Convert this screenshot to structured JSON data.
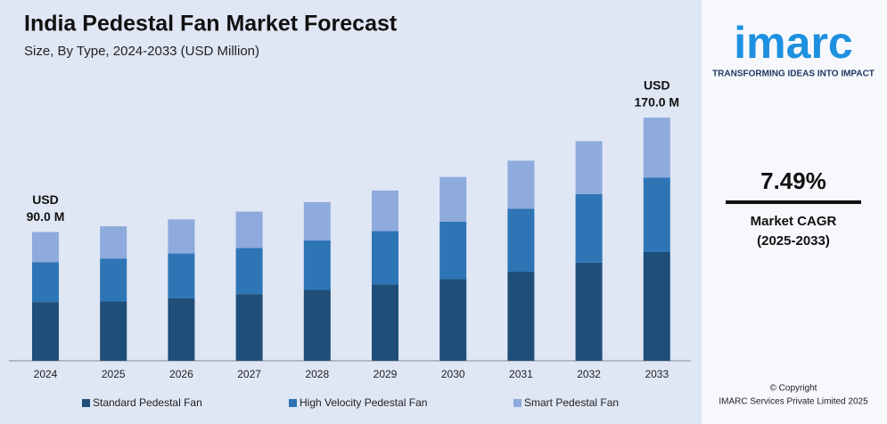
{
  "chart_data": {
    "type": "stacked-bar",
    "title": "India Pedestal Fan Market Forecast",
    "subtitle": "Size, By Type, 2024-2033 (USD Million)",
    "categories": [
      "2024",
      "2025",
      "2026",
      "2027",
      "2028",
      "2029",
      "2030",
      "2031",
      "2032",
      "2033"
    ],
    "series": [
      {
        "name": "Standard Pedestal Fan",
        "color": "#1f4e79",
        "values": [
          41,
          41.4,
          43.8,
          46.6,
          49.5,
          53.3,
          57.0,
          62.3,
          68.7,
          76
        ]
      },
      {
        "name": "High Velocity Pedestal Fan",
        "color": "#2e75b6",
        "values": [
          28,
          30.1,
          31.2,
          32.2,
          34.7,
          37.3,
          40.2,
          43.9,
          47.8,
          52
        ]
      },
      {
        "name": "Smart Pedestal Fan",
        "color": "#8faadc",
        "values": [
          21,
          22.5,
          23.8,
          25.5,
          26.7,
          28.4,
          31.3,
          33.7,
          37.0,
          42
        ]
      }
    ],
    "ylim": [
      0,
      175
    ],
    "annotations": [
      {
        "category": "2024",
        "unit": "USD",
        "text": "90.0 M"
      },
      {
        "category": "2033",
        "unit": "USD",
        "text": "170.0 M"
      }
    ]
  },
  "sidebar": {
    "logo": "imarc",
    "tagline": "TRANSFORMING IDEAS INTO IMPACT",
    "cagr": "7.49%",
    "cagr_label": "Market CAGR",
    "cagr_period": "(2025-2033)",
    "copyright": "© Copyright",
    "company": "IMARC Services Private Limited 2025"
  }
}
